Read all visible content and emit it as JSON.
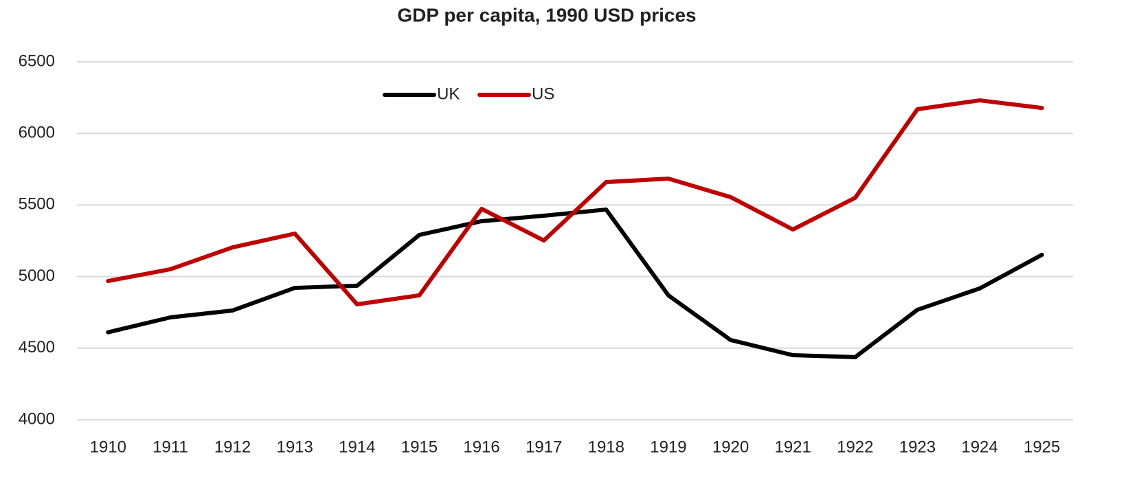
{
  "chart_data": {
    "type": "line",
    "title": "GDP per capita, 1990 USD prices",
    "categories": [
      "1910",
      "1911",
      "1912",
      "1913",
      "1914",
      "1915",
      "1916",
      "1917",
      "1918",
      "1919",
      "1920",
      "1921",
      "1922",
      "1923",
      "1924",
      "1925"
    ],
    "series": [
      {
        "name": "UK",
        "color": "#000000",
        "values": [
          4611,
          4715,
          4763,
          4921,
          4936,
          5291,
          5387,
          5425,
          5468,
          4869,
          4557,
          4451,
          4437,
          4768,
          4917,
          5152
        ]
      },
      {
        "name": "US",
        "color": "#c00000",
        "values": [
          4969,
          5051,
          5204,
          5300,
          4806,
          4869,
          5473,
          5252,
          5660,
          5684,
          5555,
          5329,
          5550,
          6169,
          6231,
          6178
        ]
      }
    ],
    "ylim": [
      4000,
      6500
    ],
    "yticks": [
      4000,
      4500,
      5000,
      5500,
      6000,
      6500
    ],
    "grid": true,
    "legend": "top"
  }
}
